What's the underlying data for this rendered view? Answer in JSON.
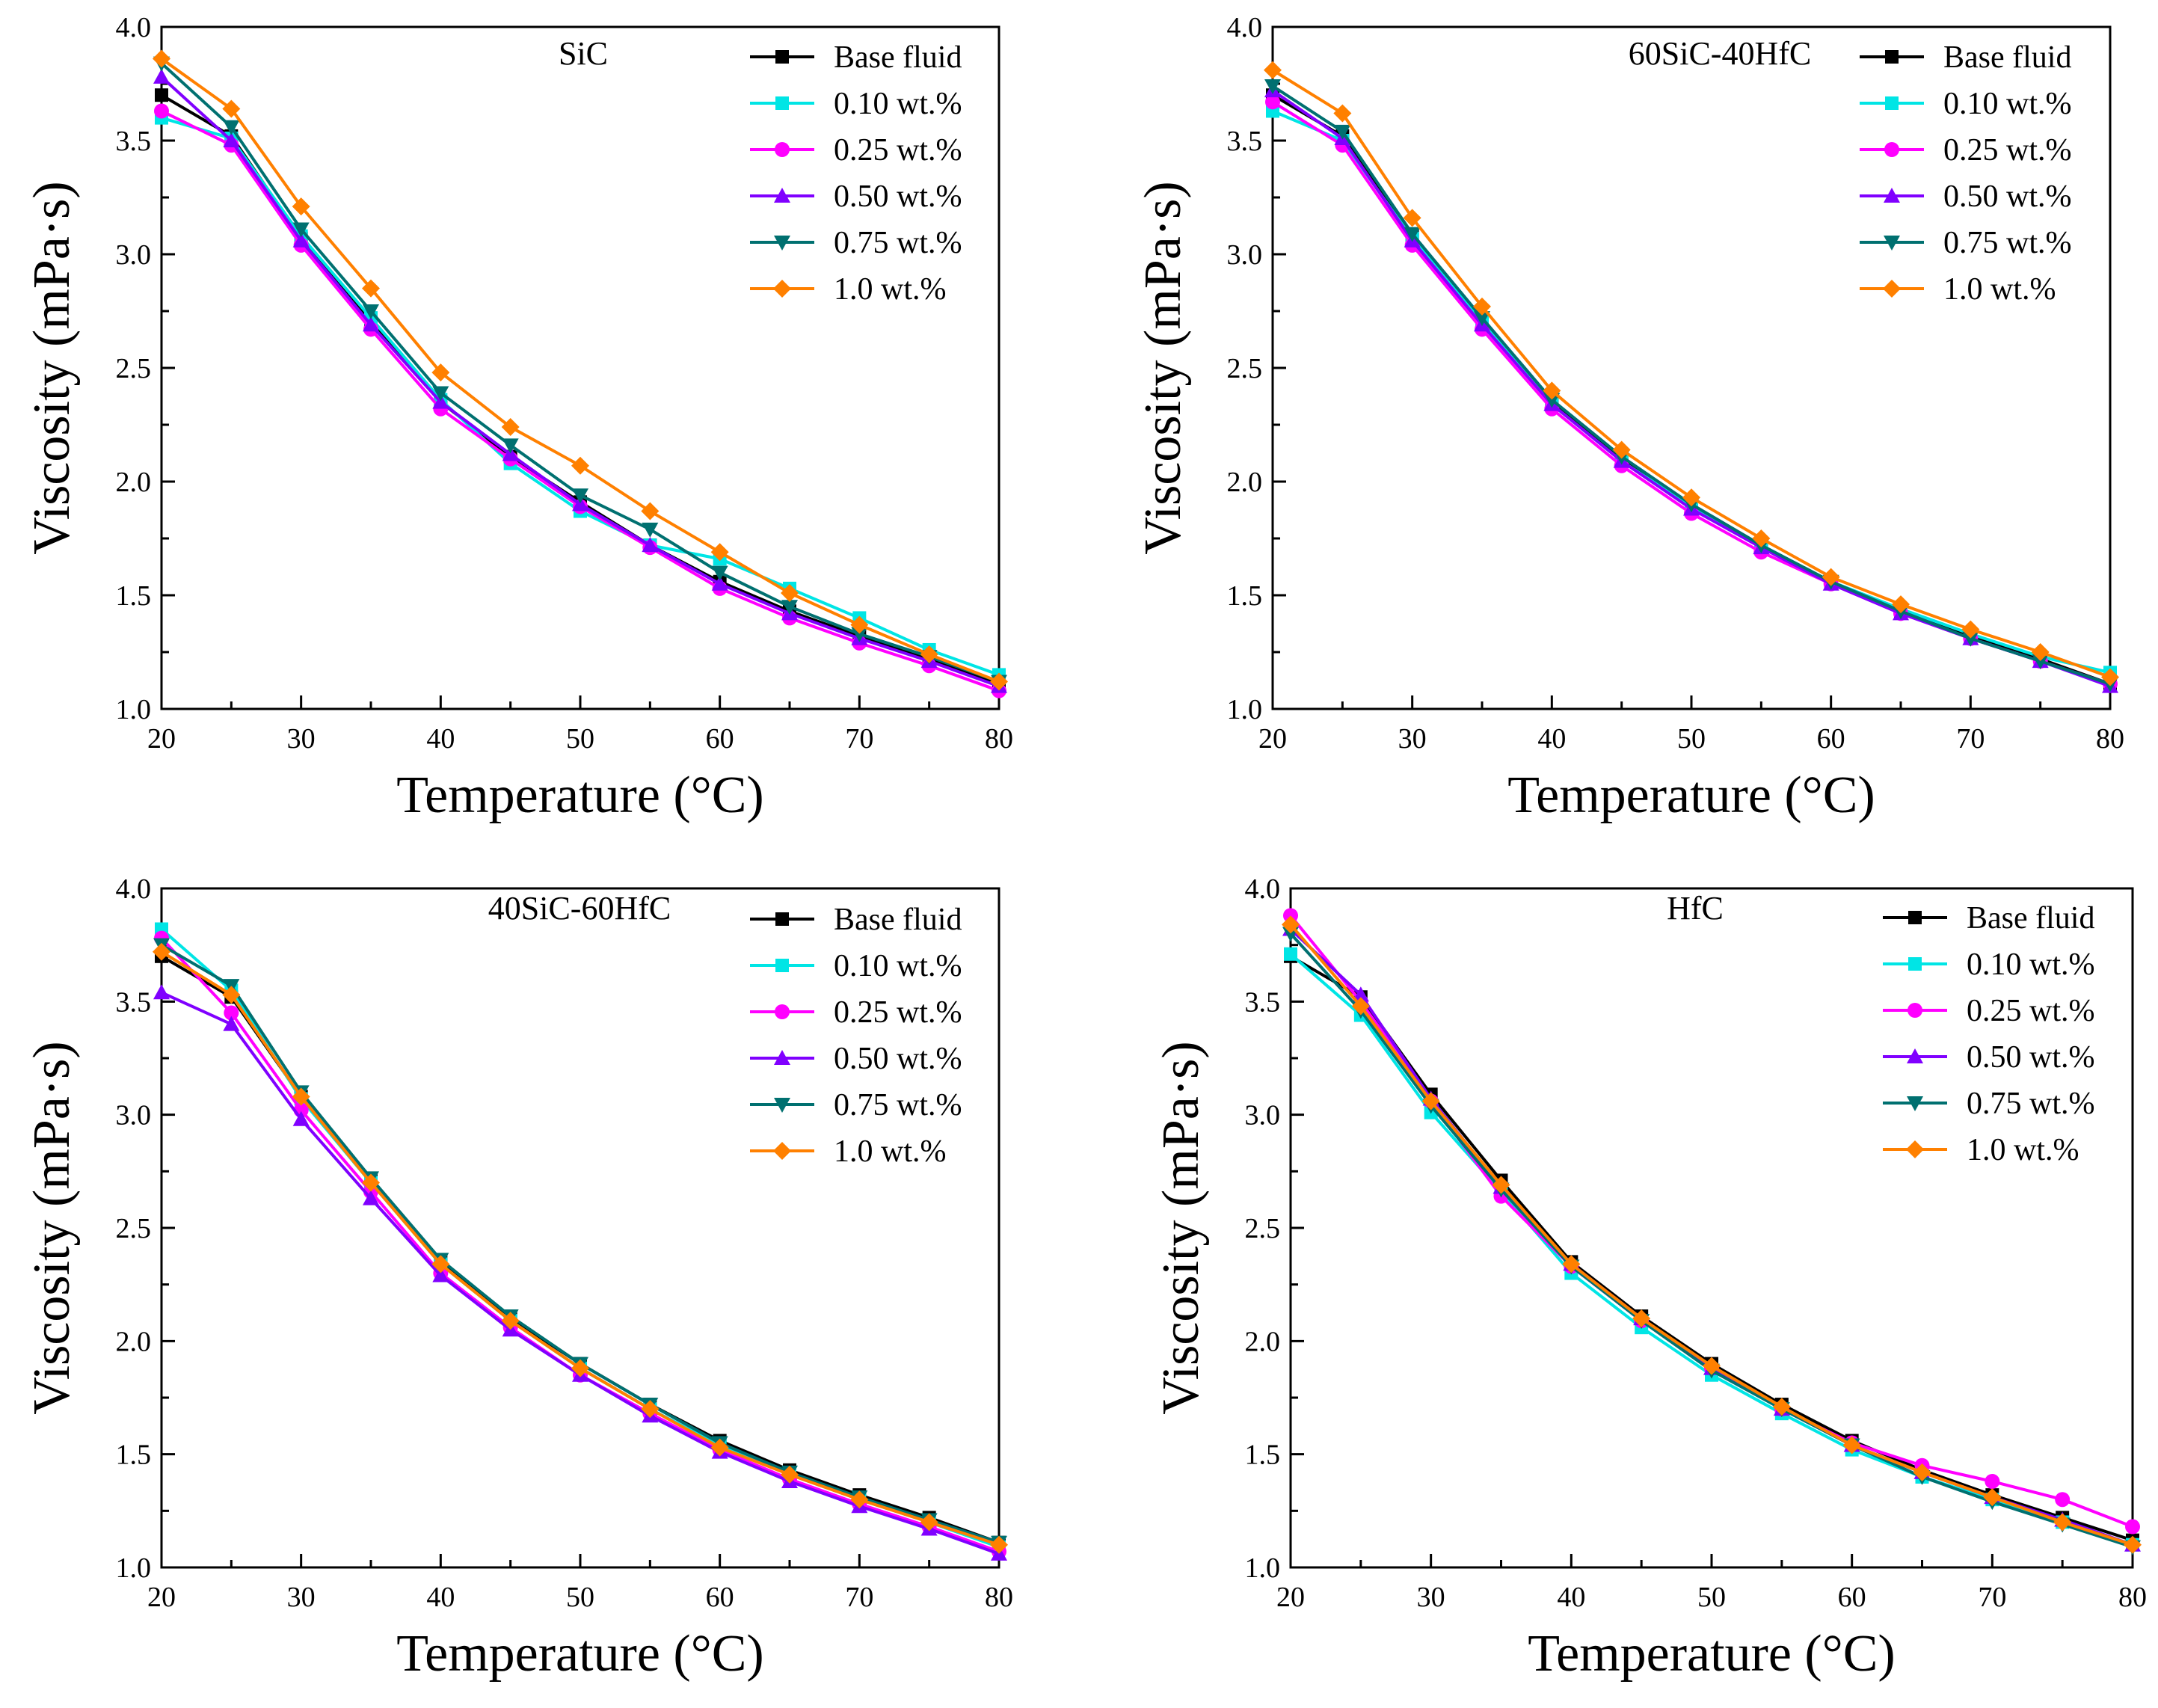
{
  "chart_data": [
    {
      "type": "line",
      "title": "SiC",
      "xlabel": "Temperature (°C)",
      "ylabel": "Viscosity (mPa·s)",
      "xlim": [
        20,
        80
      ],
      "ylim": [
        1.0,
        4.0
      ],
      "xticks": [
        "20",
        "30",
        "40",
        "50",
        "60",
        "70",
        "80"
      ],
      "yticks": [
        "1.0",
        "1.5",
        "2.0",
        "2.5",
        "3.0",
        "3.5",
        "4.0"
      ],
      "x": [
        20,
        25,
        30,
        35,
        40,
        45,
        50,
        55,
        60,
        65,
        70,
        75,
        80
      ],
      "series": [
        {
          "name": "Base fluid",
          "color": "#000000",
          "marker": "square",
          "values": [
            3.7,
            3.52,
            3.07,
            2.71,
            2.35,
            2.11,
            1.91,
            1.72,
            1.56,
            1.43,
            1.32,
            1.22,
            1.11
          ]
        },
        {
          "name": "0.10 wt.%",
          "color": "#00e5e5",
          "marker": "square",
          "values": [
            3.6,
            3.51,
            3.08,
            2.72,
            2.36,
            2.08,
            1.87,
            1.72,
            1.66,
            1.53,
            1.4,
            1.26,
            1.15
          ]
        },
        {
          "name": "0.25 wt.%",
          "color": "#ff00ff",
          "marker": "circle",
          "values": [
            3.63,
            3.48,
            3.04,
            2.67,
            2.32,
            2.1,
            1.89,
            1.71,
            1.53,
            1.4,
            1.29,
            1.19,
            1.08
          ]
        },
        {
          "name": "0.50 wt.%",
          "color": "#8000ff",
          "marker": "triangle-up",
          "values": [
            3.78,
            3.5,
            3.06,
            2.69,
            2.35,
            2.12,
            1.9,
            1.72,
            1.55,
            1.42,
            1.31,
            1.21,
            1.1
          ]
        },
        {
          "name": "0.75 wt.%",
          "color": "#007070",
          "marker": "triangle-down",
          "values": [
            3.84,
            3.56,
            3.11,
            2.75,
            2.39,
            2.16,
            1.94,
            1.79,
            1.6,
            1.45,
            1.33,
            1.23,
            1.12
          ]
        },
        {
          "name": "1.0 wt.%",
          "color": "#ff8000",
          "marker": "diamond",
          "values": [
            3.86,
            3.64,
            3.21,
            2.85,
            2.48,
            2.24,
            2.07,
            1.87,
            1.69,
            1.51,
            1.37,
            1.24,
            1.12
          ]
        }
      ]
    },
    {
      "type": "line",
      "title": "60SiC-40HfC",
      "xlabel": "Temperature (°C)",
      "ylabel": "Viscosity (mPa·s)",
      "xlim": [
        20,
        80
      ],
      "ylim": [
        1.0,
        4.0
      ],
      "xticks": [
        "20",
        "30",
        "40",
        "50",
        "60",
        "70",
        "80"
      ],
      "yticks": [
        "1.0",
        "1.5",
        "2.0",
        "2.5",
        "3.0",
        "3.5",
        "4.0"
      ],
      "x": [
        20,
        25,
        30,
        35,
        40,
        45,
        50,
        55,
        60,
        65,
        70,
        75,
        80
      ],
      "series": [
        {
          "name": "Base fluid",
          "color": "#000000",
          "marker": "square",
          "values": [
            3.7,
            3.52,
            3.08,
            2.71,
            2.35,
            2.1,
            1.9,
            1.72,
            1.56,
            1.43,
            1.32,
            1.22,
            1.11
          ]
        },
        {
          "name": "0.10 wt.%",
          "color": "#00e5e5",
          "marker": "square",
          "values": [
            3.63,
            3.5,
            3.07,
            2.7,
            2.34,
            2.09,
            1.89,
            1.72,
            1.56,
            1.44,
            1.33,
            1.23,
            1.16
          ]
        },
        {
          "name": "0.25 wt.%",
          "color": "#ff00ff",
          "marker": "circle",
          "values": [
            3.67,
            3.48,
            3.04,
            2.67,
            2.32,
            2.07,
            1.86,
            1.69,
            1.55,
            1.42,
            1.31,
            1.21,
            1.11
          ]
        },
        {
          "name": "0.50 wt.%",
          "color": "#8000ff",
          "marker": "triangle-up",
          "values": [
            3.72,
            3.51,
            3.06,
            2.69,
            2.34,
            2.09,
            1.88,
            1.71,
            1.55,
            1.42,
            1.31,
            1.21,
            1.1
          ]
        },
        {
          "name": "0.75 wt.%",
          "color": "#007070",
          "marker": "triangle-down",
          "values": [
            3.74,
            3.54,
            3.09,
            2.72,
            2.36,
            2.11,
            1.9,
            1.72,
            1.56,
            1.43,
            1.31,
            1.21,
            1.11
          ]
        },
        {
          "name": "1.0 wt.%",
          "color": "#ff8000",
          "marker": "diamond",
          "values": [
            3.81,
            3.62,
            3.16,
            2.77,
            2.4,
            2.14,
            1.93,
            1.75,
            1.58,
            1.46,
            1.35,
            1.25,
            1.14
          ]
        }
      ]
    },
    {
      "type": "line",
      "title": "40SiC-60HfC",
      "xlabel": "Temperature (°C)",
      "ylabel": "Viscosity (mPa·s)",
      "xlim": [
        20,
        80
      ],
      "ylim": [
        1.0,
        4.0
      ],
      "xticks": [
        "20",
        "30",
        "40",
        "50",
        "60",
        "70",
        "80"
      ],
      "yticks": [
        "1.0",
        "1.5",
        "2.0",
        "2.5",
        "3.0",
        "3.5",
        "4.0"
      ],
      "x": [
        20,
        25,
        30,
        35,
        40,
        45,
        50,
        55,
        60,
        65,
        70,
        75,
        80
      ],
      "series": [
        {
          "name": "Base fluid",
          "color": "#000000",
          "marker": "square",
          "values": [
            3.7,
            3.52,
            3.08,
            2.71,
            2.35,
            2.1,
            1.9,
            1.72,
            1.56,
            1.43,
            1.32,
            1.22,
            1.11
          ]
        },
        {
          "name": "0.10 wt.%",
          "color": "#00e5e5",
          "marker": "square",
          "values": [
            3.82,
            3.55,
            3.07,
            2.7,
            2.34,
            2.09,
            1.88,
            1.7,
            1.54,
            1.41,
            1.3,
            1.2,
            1.09
          ]
        },
        {
          "name": "0.25 wt.%",
          "color": "#ff00ff",
          "marker": "circle",
          "values": [
            3.78,
            3.45,
            3.02,
            2.66,
            2.3,
            2.06,
            1.85,
            1.68,
            1.52,
            1.39,
            1.28,
            1.18,
            1.07
          ]
        },
        {
          "name": "0.50 wt.%",
          "color": "#8000ff",
          "marker": "triangle-up",
          "values": [
            3.54,
            3.4,
            2.98,
            2.63,
            2.29,
            2.05,
            1.85,
            1.67,
            1.51,
            1.38,
            1.27,
            1.17,
            1.06
          ]
        },
        {
          "name": "0.75 wt.%",
          "color": "#007070",
          "marker": "triangle-down",
          "values": [
            3.75,
            3.57,
            3.1,
            2.72,
            2.36,
            2.11,
            1.9,
            1.72,
            1.55,
            1.42,
            1.31,
            1.21,
            1.11
          ]
        },
        {
          "name": "1.0 wt.%",
          "color": "#ff8000",
          "marker": "diamond",
          "values": [
            3.72,
            3.53,
            3.08,
            2.7,
            2.34,
            2.09,
            1.88,
            1.7,
            1.53,
            1.41,
            1.3,
            1.2,
            1.1
          ]
        }
      ]
    },
    {
      "type": "line",
      "title": "HfC",
      "xlabel": "Temperature (°C)",
      "ylabel": "Viscosity (mPa·s)",
      "xlim": [
        20,
        80
      ],
      "ylim": [
        1.0,
        4.0
      ],
      "xticks": [
        "20",
        "30",
        "40",
        "50",
        "60",
        "70",
        "80"
      ],
      "yticks": [
        "1.0",
        "1.5",
        "2.0",
        "2.5",
        "3.0",
        "3.5",
        "4.0"
      ],
      "x": [
        20,
        25,
        30,
        35,
        40,
        45,
        50,
        55,
        60,
        65,
        70,
        75,
        80
      ],
      "series": [
        {
          "name": "Base fluid",
          "color": "#000000",
          "marker": "square",
          "values": [
            3.7,
            3.52,
            3.09,
            2.71,
            2.35,
            2.11,
            1.9,
            1.72,
            1.56,
            1.43,
            1.32,
            1.22,
            1.12
          ]
        },
        {
          "name": "0.10 wt.%",
          "color": "#00e5e5",
          "marker": "square",
          "values": [
            3.71,
            3.44,
            3.01,
            2.66,
            2.3,
            2.06,
            1.85,
            1.68,
            1.52,
            1.4,
            1.3,
            1.2,
            1.1
          ]
        },
        {
          "name": "0.25 wt.%",
          "color": "#ff00ff",
          "marker": "circle",
          "values": [
            3.88,
            3.5,
            3.06,
            2.64,
            2.33,
            2.09,
            1.88,
            1.7,
            1.55,
            1.45,
            1.38,
            1.3,
            1.18
          ]
        },
        {
          "name": "0.50 wt.%",
          "color": "#8000ff",
          "marker": "triangle-up",
          "values": [
            3.82,
            3.53,
            3.07,
            2.68,
            2.34,
            2.1,
            1.88,
            1.7,
            1.54,
            1.42,
            1.31,
            1.21,
            1.1
          ]
        },
        {
          "name": "0.75 wt.%",
          "color": "#007070",
          "marker": "triangle-down",
          "values": [
            3.8,
            3.46,
            3.04,
            2.67,
            2.33,
            2.09,
            1.87,
            1.7,
            1.54,
            1.4,
            1.29,
            1.19,
            1.09
          ]
        },
        {
          "name": "1.0 wt.%",
          "color": "#ff8000",
          "marker": "diamond",
          "values": [
            3.84,
            3.48,
            3.06,
            2.69,
            2.34,
            2.1,
            1.89,
            1.71,
            1.54,
            1.42,
            1.31,
            1.2,
            1.1
          ]
        }
      ]
    }
  ]
}
